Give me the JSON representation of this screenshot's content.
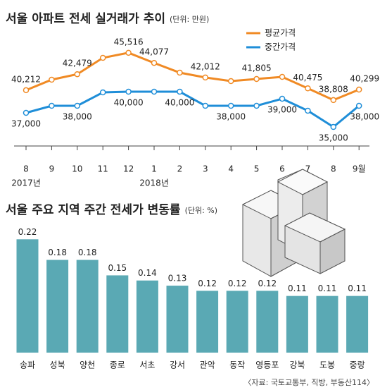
{
  "chart_data": [
    {
      "type": "line",
      "title": "서울 아파트 전세 실거래가 추이",
      "subtitle": "(단위: 만원)",
      "categories": [
        "8",
        "9",
        "10",
        "11",
        "12",
        "1",
        "2",
        "3",
        "4",
        "5",
        "6",
        "7",
        "8",
        "9월"
      ],
      "x_sublabels": [
        "2017년",
        null,
        null,
        null,
        null,
        "2018년",
        null,
        null,
        null,
        null,
        null,
        null,
        null,
        null
      ],
      "ylim": [
        33000,
        47000
      ],
      "series": [
        {
          "name": "평균가격",
          "color": "#f08a24",
          "values": [
            40212,
            41700,
            42479,
            44800,
            45516,
            44077,
            42700,
            42012,
            41500,
            41805,
            42100,
            40475,
            38808,
            40299
          ],
          "value_labels": [
            "40,212",
            null,
            "42,479",
            null,
            "45,516",
            "44,077",
            null,
            "42,012",
            null,
            "41,805",
            null,
            "40,475",
            "38,808",
            "40,299"
          ]
        },
        {
          "name": "중간가격",
          "color": "#1f8ed8",
          "values": [
            37000,
            38000,
            38000,
            39900,
            40000,
            40000,
            40000,
            38000,
            38000,
            38000,
            39000,
            37300,
            35000,
            38000
          ],
          "value_labels": [
            "37,000",
            null,
            "38,000",
            null,
            "40,000",
            null,
            "40,000",
            null,
            "38,000",
            null,
            "39,000",
            null,
            "35,000",
            "38,000"
          ]
        }
      ]
    },
    {
      "type": "bar",
      "title": "서울 주요 지역 주간 전세가 변동률",
      "subtitle": "(단위: %)",
      "categories": [
        "송파",
        "성북",
        "양천",
        "종로",
        "서초",
        "강서",
        "관악",
        "동작",
        "영등포",
        "강북",
        "도봉",
        "중랑"
      ],
      "values": [
        0.22,
        0.18,
        0.18,
        0.15,
        0.14,
        0.13,
        0.12,
        0.12,
        0.12,
        0.11,
        0.11,
        0.11
      ],
      "color": "#5aa9b4",
      "ylim": [
        0,
        0.23
      ],
      "source": "〈자료: 국토교통부, 직방, 부동산114〉"
    }
  ]
}
